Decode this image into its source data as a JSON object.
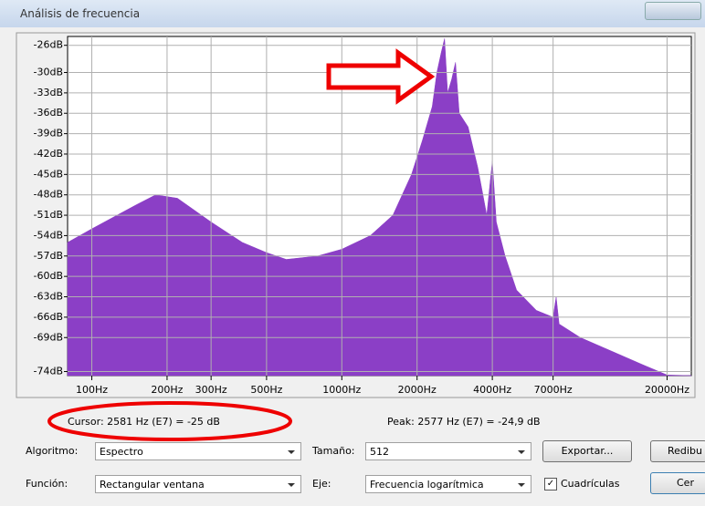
{
  "window": {
    "title": "Análisis de frecuencia"
  },
  "chart_data": {
    "type": "area",
    "color": "#8b3fc6",
    "x_scale": "log",
    "grid": true,
    "x": [
      80,
      100,
      150,
      180,
      220,
      300,
      400,
      500,
      600,
      800,
      1000,
      1300,
      1600,
      1900,
      2100,
      2300,
      2400,
      2500,
      2577,
      2650,
      2750,
      2850,
      2950,
      3200,
      3500,
      3800,
      4000,
      4150,
      4500,
      5000,
      6000,
      7000,
      7200,
      7400,
      9000,
      12000,
      16000,
      20000,
      25000
    ],
    "series": [
      {
        "values": [
          -55,
          -53,
          -49.5,
          -48,
          -48.5,
          -52,
          -55,
          -56.5,
          -57.5,
          -57,
          -56,
          -54,
          -51,
          -45,
          -40,
          -35,
          -30,
          -27,
          -25,
          -33,
          -31,
          -28.5,
          -36,
          -38,
          -44,
          -51,
          -43,
          -52,
          -57,
          -62,
          -65,
          -66,
          -63,
          -67,
          -69,
          -71,
          -73,
          -74.5,
          -74.6
        ]
      }
    ],
    "xlim": [
      80,
      25000
    ],
    "xticks": [
      {
        "value": 100,
        "label": "100Hz"
      },
      {
        "value": 200,
        "label": "200Hz"
      },
      {
        "value": 300,
        "label": "300Hz"
      },
      {
        "value": 500,
        "label": "500Hz"
      },
      {
        "value": 1000,
        "label": "1000Hz"
      },
      {
        "value": 2000,
        "label": "2000Hz"
      },
      {
        "value": 4000,
        "label": "4000Hz"
      },
      {
        "value": 7000,
        "label": "7000Hz"
      },
      {
        "value": 20000,
        "label": "20000Hz"
      }
    ],
    "ylim": [
      -74.6,
      -24.7
    ],
    "yticks": [
      {
        "value": -26,
        "label": "-26dB"
      },
      {
        "value": -30,
        "label": "-30dB"
      },
      {
        "value": -33,
        "label": "-33dB"
      },
      {
        "value": -36,
        "label": "-36dB"
      },
      {
        "value": -39,
        "label": "-39dB"
      },
      {
        "value": -42,
        "label": "-42dB"
      },
      {
        "value": -45,
        "label": "-45dB"
      },
      {
        "value": -48,
        "label": "-48dB"
      },
      {
        "value": -51,
        "label": "-51dB"
      },
      {
        "value": -54,
        "label": "-54dB"
      },
      {
        "value": -57,
        "label": "-57dB"
      },
      {
        "value": -60,
        "label": "-60dB"
      },
      {
        "value": -63,
        "label": "-63dB"
      },
      {
        "value": -66,
        "label": "-66dB"
      },
      {
        "value": -69,
        "label": "-69dB"
      },
      {
        "value": -74,
        "label": "-74dB"
      }
    ]
  },
  "status": {
    "cursor": "Cursor:  2581 Hz (E7) = -25 dB",
    "peak": "Peak:  2577 Hz (E7) = -24,9 dB"
  },
  "controls": {
    "algorithm_label": "Algoritmo:",
    "algorithm": "Espectro",
    "size_label": "Tamaño:",
    "size": "512",
    "export": "Exportar...",
    "redraw": "Redibu",
    "function_label": "Función:",
    "function": "Rectangular ventana",
    "axis_label": "Eje:",
    "axis": "Frecuencia logarítmica",
    "grid_label": "Cuadrículas",
    "close": "Cer"
  }
}
